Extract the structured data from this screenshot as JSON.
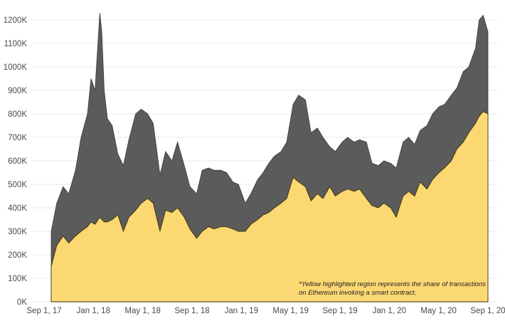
{
  "chart_data": {
    "type": "area",
    "title": "",
    "xlabel": "",
    "ylabel": "",
    "x_tick_labels": [
      "Sep 1, 17",
      "Jan 1, 18",
      "May 1, 18",
      "Sep 1, 18",
      "Jan 1, 19",
      "May 1, 19",
      "Sep 1, 19",
      "Jan 1, 20",
      "May 1, 20",
      "Sep 1, 20"
    ],
    "y_tick_labels": [
      "0K",
      "100K",
      "200K",
      "300K",
      "400K",
      "500K",
      "600K",
      "700K",
      "800K",
      "900K",
      "1000K",
      "1100K",
      "1200K"
    ],
    "ylim": [
      0,
      1250000
    ],
    "grid": true,
    "annotation_lines": [
      "*Yellow highlighted region represents the share of transactions",
      "on Ethereum invoking a smart contract."
    ],
    "colors": {
      "total": "#5b5b5b",
      "smart_contract": "#fcd873",
      "gridline": "#e8e8e8",
      "axis_text": "#4a4a4a"
    },
    "x": [
      "2017-09-01",
      "2017-09-15",
      "2017-10-01",
      "2017-10-15",
      "2017-11-01",
      "2017-11-15",
      "2017-12-01",
      "2017-12-10",
      "2017-12-20",
      "2018-01-01",
      "2018-01-06",
      "2018-01-12",
      "2018-01-20",
      "2018-02-01",
      "2018-02-15",
      "2018-03-01",
      "2018-03-15",
      "2018-04-01",
      "2018-04-15",
      "2018-05-01",
      "2018-05-15",
      "2018-06-01",
      "2018-06-15",
      "2018-07-01",
      "2018-07-15",
      "2018-08-01",
      "2018-08-15",
      "2018-09-01",
      "2018-09-15",
      "2018-10-01",
      "2018-10-15",
      "2018-11-01",
      "2018-11-15",
      "2018-12-01",
      "2018-12-15",
      "2019-01-01",
      "2019-01-15",
      "2019-02-01",
      "2019-02-15",
      "2019-03-01",
      "2019-03-15",
      "2019-04-01",
      "2019-04-15",
      "2019-05-01",
      "2019-05-15",
      "2019-06-01",
      "2019-06-15",
      "2019-07-01",
      "2019-07-15",
      "2019-08-01",
      "2019-08-15",
      "2019-09-01",
      "2019-09-15",
      "2019-10-01",
      "2019-10-15",
      "2019-11-01",
      "2019-11-15",
      "2019-12-01",
      "2019-12-15",
      "2020-01-01",
      "2020-01-15",
      "2020-02-01",
      "2020-02-15",
      "2020-03-01",
      "2020-03-15",
      "2020-04-01",
      "2020-04-15",
      "2020-05-01",
      "2020-05-15",
      "2020-06-01",
      "2020-06-15",
      "2020-07-01",
      "2020-07-15",
      "2020-08-01",
      "2020-08-10",
      "2020-08-20",
      "2020-09-01"
    ],
    "series": [
      {
        "values": [
          300000,
          420000,
          490000,
          460000,
          560000,
          700000,
          800000,
          950000,
          900000,
          1230000,
          1150000,
          900000,
          780000,
          750000,
          630000,
          580000,
          690000,
          800000,
          820000,
          800000,
          760000,
          540000,
          640000,
          600000,
          680000,
          580000,
          490000,
          460000,
          560000,
          570000,
          560000,
          560000,
          550000,
          510000,
          500000,
          420000,
          460000,
          520000,
          550000,
          590000,
          620000,
          640000,
          680000,
          840000,
          880000,
          860000,
          720000,
          740000,
          700000,
          660000,
          640000,
          680000,
          700000,
          680000,
          690000,
          680000,
          590000,
          580000,
          600000,
          590000,
          570000,
          680000,
          700000,
          670000,
          730000,
          750000,
          800000,
          830000,
          840000,
          880000,
          910000,
          980000,
          1000000,
          1080000,
          1200000,
          1220000,
          1150000
        ]
      },
      {
        "values": [
          150000,
          240000,
          280000,
          250000,
          280000,
          300000,
          320000,
          340000,
          330000,
          360000,
          350000,
          340000,
          340000,
          350000,
          370000,
          300000,
          360000,
          390000,
          420000,
          440000,
          420000,
          300000,
          390000,
          380000,
          400000,
          360000,
          310000,
          270000,
          300000,
          320000,
          310000,
          320000,
          320000,
          310000,
          300000,
          300000,
          330000,
          350000,
          370000,
          380000,
          400000,
          420000,
          440000,
          530000,
          510000,
          490000,
          430000,
          460000,
          440000,
          490000,
          450000,
          470000,
          480000,
          470000,
          480000,
          440000,
          410000,
          400000,
          420000,
          400000,
          360000,
          450000,
          470000,
          450000,
          510000,
          480000,
          520000,
          550000,
          570000,
          600000,
          650000,
          680000,
          720000,
          760000,
          790000,
          810000,
          800000
        ]
      }
    ]
  }
}
